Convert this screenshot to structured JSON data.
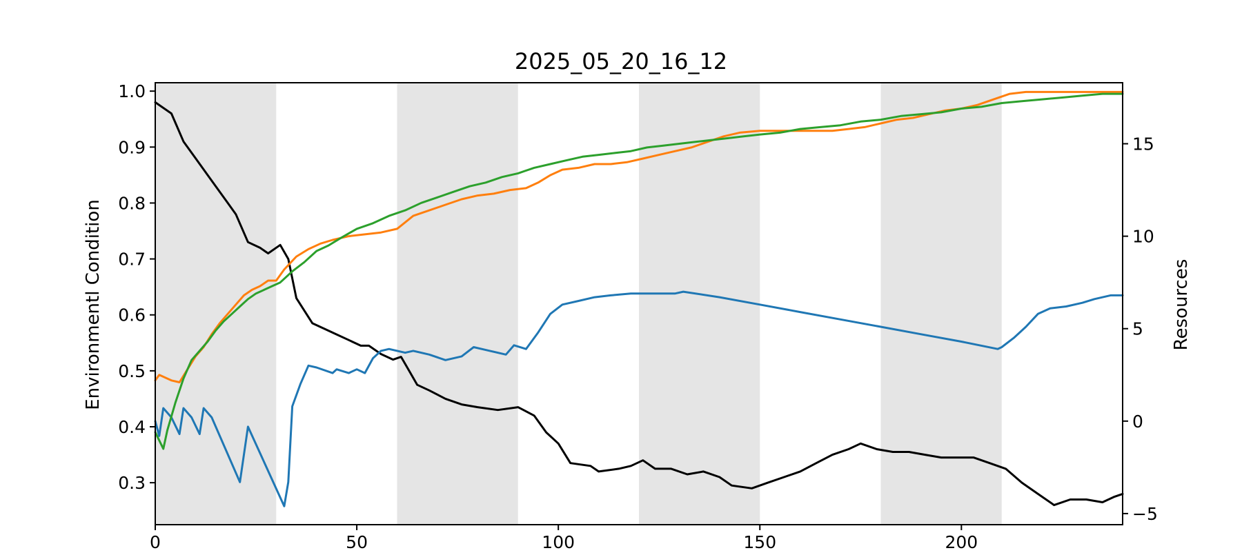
{
  "chart_data": {
    "type": "line",
    "title": "2025_05_20_16_12",
    "ylabel_left": "Environmentl Condition",
    "ylabel_right": "Resources",
    "xlim": [
      0,
      240
    ],
    "ylim_left": [
      0.225,
      1.015
    ],
    "ylim_right": [
      -5.6,
      18.3
    ],
    "x_ticks": [
      0,
      50,
      100,
      150,
      200
    ],
    "y_ticks_left": [
      0.3,
      0.4,
      0.5,
      0.6,
      0.7,
      0.8,
      0.9,
      1.0
    ],
    "y_ticks_right": [
      -5,
      0,
      5,
      10,
      15
    ],
    "grid": false,
    "shaded_regions": [
      [
        0,
        30
      ],
      [
        60,
        90
      ],
      [
        120,
        150
      ],
      [
        180,
        210
      ]
    ],
    "shade_color": "#e5e5e5",
    "series": [
      {
        "axis": "left",
        "color": "#000000",
        "points": [
          [
            0,
            0.98
          ],
          [
            4,
            0.96
          ],
          [
            7,
            0.91
          ],
          [
            10,
            0.88
          ],
          [
            13,
            0.85
          ],
          [
            15,
            0.83
          ],
          [
            18,
            0.8
          ],
          [
            20,
            0.78
          ],
          [
            23,
            0.73
          ],
          [
            26,
            0.72
          ],
          [
            28,
            0.71
          ],
          [
            31,
            0.725
          ],
          [
            33,
            0.7
          ],
          [
            35,
            0.63
          ],
          [
            39,
            0.585
          ],
          [
            42,
            0.575
          ],
          [
            45,
            0.565
          ],
          [
            48,
            0.555
          ],
          [
            51,
            0.545
          ],
          [
            53,
            0.545
          ],
          [
            56,
            0.53
          ],
          [
            59,
            0.52
          ],
          [
            61,
            0.525
          ],
          [
            63,
            0.5
          ],
          [
            65,
            0.475
          ],
          [
            68,
            0.465
          ],
          [
            72,
            0.45
          ],
          [
            76,
            0.44
          ],
          [
            80,
            0.435
          ],
          [
            85,
            0.43
          ],
          [
            90,
            0.435
          ],
          [
            94,
            0.42
          ],
          [
            97,
            0.39
          ],
          [
            100,
            0.37
          ],
          [
            103,
            0.335
          ],
          [
            108,
            0.33
          ],
          [
            110,
            0.32
          ],
          [
            115,
            0.325
          ],
          [
            118,
            0.33
          ],
          [
            121,
            0.34
          ],
          [
            124,
            0.325
          ],
          [
            128,
            0.325
          ],
          [
            132,
            0.315
          ],
          [
            136,
            0.32
          ],
          [
            140,
            0.31
          ],
          [
            143,
            0.295
          ],
          [
            148,
            0.29
          ],
          [
            152,
            0.3
          ],
          [
            156,
            0.31
          ],
          [
            160,
            0.32
          ],
          [
            164,
            0.335
          ],
          [
            168,
            0.35
          ],
          [
            172,
            0.36
          ],
          [
            175,
            0.37
          ],
          [
            179,
            0.36
          ],
          [
            183,
            0.355
          ],
          [
            187,
            0.355
          ],
          [
            191,
            0.35
          ],
          [
            195,
            0.345
          ],
          [
            199,
            0.345
          ],
          [
            203,
            0.345
          ],
          [
            207,
            0.335
          ],
          [
            211,
            0.325
          ],
          [
            215,
            0.3
          ],
          [
            219,
            0.28
          ],
          [
            223,
            0.26
          ],
          [
            227,
            0.27
          ],
          [
            231,
            0.27
          ],
          [
            235,
            0.265
          ],
          [
            238,
            0.275
          ],
          [
            240,
            0.28
          ]
        ]
      },
      {
        "axis": "right",
        "color": "#1f77b4",
        "points": [
          [
            0,
            0.0
          ],
          [
            1,
            -0.8
          ],
          [
            2,
            0.7
          ],
          [
            4,
            0.2
          ],
          [
            6,
            -0.7
          ],
          [
            7,
            0.7
          ],
          [
            9,
            0.2
          ],
          [
            11,
            -0.7
          ],
          [
            12,
            0.7
          ],
          [
            14,
            0.2
          ],
          [
            21,
            -3.3
          ],
          [
            23,
            -0.3
          ],
          [
            32,
            -4.6
          ],
          [
            33,
            -3.3
          ],
          [
            34,
            0.8
          ],
          [
            36,
            2.0
          ],
          [
            38,
            3.0
          ],
          [
            40,
            2.9
          ],
          [
            44,
            2.6
          ],
          [
            45,
            2.8
          ],
          [
            48,
            2.6
          ],
          [
            50,
            2.8
          ],
          [
            52,
            2.6
          ],
          [
            54,
            3.4
          ],
          [
            56,
            3.8
          ],
          [
            58,
            3.9
          ],
          [
            62,
            3.7
          ],
          [
            64,
            3.8
          ],
          [
            68,
            3.6
          ],
          [
            72,
            3.3
          ],
          [
            76,
            3.5
          ],
          [
            79,
            4.0
          ],
          [
            83,
            3.8
          ],
          [
            87,
            3.6
          ],
          [
            89,
            4.1
          ],
          [
            92,
            3.9
          ],
          [
            95,
            4.8
          ],
          [
            98,
            5.8
          ],
          [
            101,
            6.3
          ],
          [
            105,
            6.5
          ],
          [
            109,
            6.7
          ],
          [
            113,
            6.8
          ],
          [
            118,
            6.9
          ],
          [
            124,
            6.9
          ],
          [
            129,
            6.9
          ],
          [
            131,
            7.0
          ],
          [
            140,
            6.7
          ],
          [
            150,
            6.3
          ],
          [
            160,
            5.9
          ],
          [
            170,
            5.5
          ],
          [
            180,
            5.1
          ],
          [
            190,
            4.7
          ],
          [
            200,
            4.3
          ],
          [
            209,
            3.9
          ],
          [
            210,
            4.0
          ],
          [
            213,
            4.5
          ],
          [
            216,
            5.1
          ],
          [
            219,
            5.8
          ],
          [
            222,
            6.1
          ],
          [
            226,
            6.2
          ],
          [
            230,
            6.4
          ],
          [
            233,
            6.6
          ],
          [
            237,
            6.8
          ],
          [
            240,
            6.8
          ]
        ]
      },
      {
        "axis": "right",
        "color": "#ff7f0e",
        "points": [
          [
            0,
            2.2
          ],
          [
            1,
            2.5
          ],
          [
            4,
            2.2
          ],
          [
            6,
            2.1
          ],
          [
            8,
            2.8
          ],
          [
            10,
            3.5
          ],
          [
            12,
            4.0
          ],
          [
            14,
            4.7
          ],
          [
            16,
            5.3
          ],
          [
            18,
            5.8
          ],
          [
            20,
            6.3
          ],
          [
            22,
            6.8
          ],
          [
            24,
            7.1
          ],
          [
            26,
            7.3
          ],
          [
            28,
            7.6
          ],
          [
            30,
            7.6
          ],
          [
            32,
            8.2
          ],
          [
            35,
            8.9
          ],
          [
            38,
            9.3
          ],
          [
            41,
            9.6
          ],
          [
            44,
            9.8
          ],
          [
            48,
            10.0
          ],
          [
            52,
            10.1
          ],
          [
            56,
            10.2
          ],
          [
            60,
            10.4
          ],
          [
            64,
            11.1
          ],
          [
            68,
            11.4
          ],
          [
            72,
            11.7
          ],
          [
            76,
            12.0
          ],
          [
            80,
            12.2
          ],
          [
            84,
            12.3
          ],
          [
            88,
            12.5
          ],
          [
            92,
            12.6
          ],
          [
            95,
            12.9
          ],
          [
            98,
            13.3
          ],
          [
            101,
            13.6
          ],
          [
            105,
            13.7
          ],
          [
            109,
            13.9
          ],
          [
            113,
            13.9
          ],
          [
            117,
            14.0
          ],
          [
            121,
            14.2
          ],
          [
            125,
            14.4
          ],
          [
            129,
            14.6
          ],
          [
            133,
            14.8
          ],
          [
            137,
            15.1
          ],
          [
            141,
            15.4
          ],
          [
            145,
            15.6
          ],
          [
            150,
            15.7
          ],
          [
            156,
            15.7
          ],
          [
            162,
            15.7
          ],
          [
            168,
            15.7
          ],
          [
            172,
            15.8
          ],
          [
            176,
            15.9
          ],
          [
            180,
            16.1
          ],
          [
            184,
            16.3
          ],
          [
            188,
            16.4
          ],
          [
            192,
            16.6
          ],
          [
            196,
            16.8
          ],
          [
            200,
            16.9
          ],
          [
            204,
            17.1
          ],
          [
            208,
            17.4
          ],
          [
            212,
            17.7
          ],
          [
            216,
            17.8
          ],
          [
            220,
            17.8
          ],
          [
            226,
            17.8
          ],
          [
            232,
            17.8
          ],
          [
            236,
            17.8
          ],
          [
            240,
            17.8
          ]
        ]
      },
      {
        "axis": "right",
        "color": "#2ca02c",
        "points": [
          [
            0,
            -0.6
          ],
          [
            2,
            -1.5
          ],
          [
            3,
            -0.5
          ],
          [
            5,
            1.0
          ],
          [
            7,
            2.3
          ],
          [
            9,
            3.3
          ],
          [
            11,
            3.8
          ],
          [
            13,
            4.3
          ],
          [
            15,
            4.9
          ],
          [
            17,
            5.4
          ],
          [
            19,
            5.8
          ],
          [
            21,
            6.2
          ],
          [
            23,
            6.6
          ],
          [
            25,
            6.9
          ],
          [
            27,
            7.1
          ],
          [
            29,
            7.3
          ],
          [
            31,
            7.5
          ],
          [
            34,
            8.1
          ],
          [
            37,
            8.6
          ],
          [
            40,
            9.2
          ],
          [
            43,
            9.5
          ],
          [
            46,
            9.9
          ],
          [
            50,
            10.4
          ],
          [
            54,
            10.7
          ],
          [
            58,
            11.1
          ],
          [
            62,
            11.4
          ],
          [
            66,
            11.8
          ],
          [
            70,
            12.1
          ],
          [
            74,
            12.4
          ],
          [
            78,
            12.7
          ],
          [
            82,
            12.9
          ],
          [
            86,
            13.2
          ],
          [
            90,
            13.4
          ],
          [
            94,
            13.7
          ],
          [
            98,
            13.9
          ],
          [
            102,
            14.1
          ],
          [
            106,
            14.3
          ],
          [
            110,
            14.4
          ],
          [
            114,
            14.5
          ],
          [
            118,
            14.6
          ],
          [
            122,
            14.8
          ],
          [
            126,
            14.9
          ],
          [
            130,
            15.0
          ],
          [
            134,
            15.1
          ],
          [
            138,
            15.2
          ],
          [
            142,
            15.3
          ],
          [
            146,
            15.4
          ],
          [
            150,
            15.5
          ],
          [
            155,
            15.6
          ],
          [
            160,
            15.8
          ],
          [
            165,
            15.9
          ],
          [
            170,
            16.0
          ],
          [
            175,
            16.2
          ],
          [
            180,
            16.3
          ],
          [
            185,
            16.5
          ],
          [
            190,
            16.6
          ],
          [
            195,
            16.7
          ],
          [
            200,
            16.9
          ],
          [
            205,
            17.0
          ],
          [
            210,
            17.2
          ],
          [
            215,
            17.3
          ],
          [
            220,
            17.4
          ],
          [
            225,
            17.5
          ],
          [
            230,
            17.6
          ],
          [
            235,
            17.7
          ],
          [
            240,
            17.7
          ]
        ]
      }
    ]
  }
}
